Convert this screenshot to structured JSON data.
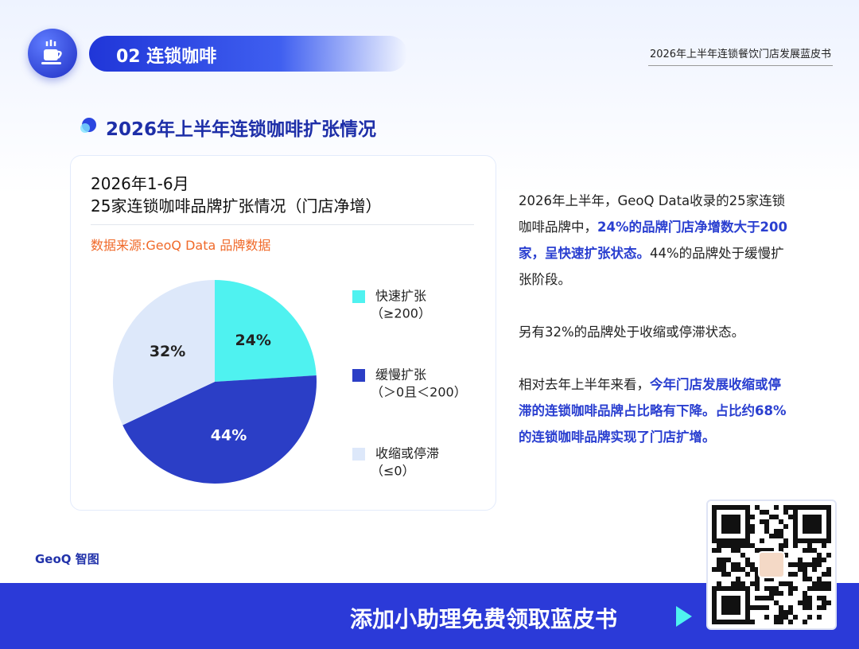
{
  "header": {
    "section": "02 连锁咖啡",
    "report_title": "2026年上半年连锁餐饮门店发展蓝皮书"
  },
  "section_title": "2026年上半年连锁咖啡扩张情况",
  "chart_data": {
    "type": "pie",
    "title": "2026年1-6月",
    "subtitle": "25家连锁咖啡品牌扩张情况（门店净增）",
    "source": "数据来源:GeoQ Data 品牌数据",
    "categories": [
      "快速扩张",
      "缓慢扩张",
      "收缩或停滞"
    ],
    "category_notes": [
      "（≥200）",
      "（＞0且＜200）",
      "（≤0）"
    ],
    "values": [
      24,
      44,
      32
    ],
    "value_labels": [
      "24%",
      "44%",
      "32%"
    ],
    "colors": [
      "#4ff2f0",
      "#2b3ec6",
      "#dde8fa"
    ]
  },
  "commentary": [
    [
      {
        "text": "2026年上半年，GeoQ Data收录的25家连锁咖啡品牌中，",
        "highlight": false
      },
      {
        "text": "24%的品牌门店净增数大于200家，呈快速扩张状态。",
        "highlight": true
      },
      {
        "text": "44%的品牌处于缓慢扩张阶段。",
        "highlight": false
      }
    ],
    [
      {
        "text": "另有32%的品牌处于收缩或停滞状态。",
        "highlight": false
      }
    ],
    [
      {
        "text": "相对去年上半年来看，",
        "highlight": false
      },
      {
        "text": "今年门店发展收缩或停滞的连锁咖啡品牌占比略有下降。占比约68%的连锁咖啡品牌实现了门店扩增。",
        "highlight": true
      }
    ]
  ],
  "logo": "GeoQ 智图",
  "footer": {
    "cta": "添加小助理免费领取蓝皮书"
  }
}
